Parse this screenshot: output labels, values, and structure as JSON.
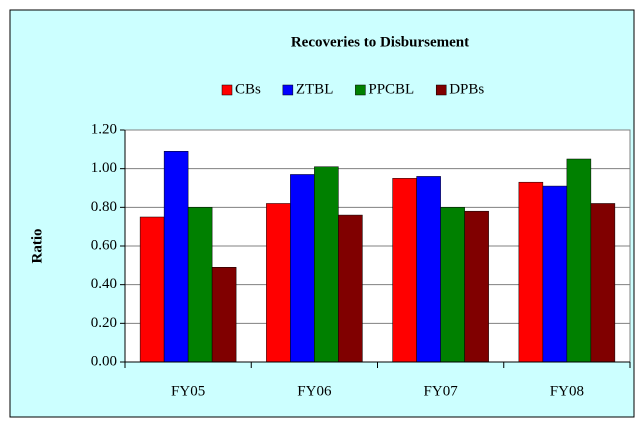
{
  "chart_data": {
    "type": "bar",
    "title": "Recoveries to Disbursement",
    "y_label": "Ratio",
    "categories": [
      "FY05",
      "FY06",
      "FY07",
      "FY08"
    ],
    "series": [
      {
        "name": "CBs",
        "color": "#ff0000",
        "values": [
          0.75,
          0.82,
          0.95,
          0.93
        ]
      },
      {
        "name": "ZTBL",
        "color": "#0000ff",
        "values": [
          1.09,
          0.97,
          0.96,
          0.91
        ]
      },
      {
        "name": "PPCBL",
        "color": "#008000",
        "values": [
          0.8,
          1.01,
          0.8,
          1.05
        ]
      },
      {
        "name": "DPBs",
        "color": "#800000",
        "values": [
          0.49,
          0.76,
          0.78,
          0.82
        ]
      }
    ],
    "ylim": [
      0,
      1.2
    ],
    "yticks": [
      {
        "value": 0,
        "label": "0.00"
      },
      {
        "value": 0.2,
        "label": "0.20"
      },
      {
        "value": 0.4,
        "label": "0.40"
      },
      {
        "value": 0.6,
        "label": "0.60"
      },
      {
        "value": 0.8,
        "label": "0.80"
      },
      {
        "value": 1.0,
        "label": "1.00"
      },
      {
        "value": 1.2,
        "label": "1.20"
      }
    ],
    "grid": true,
    "legend": "top"
  }
}
